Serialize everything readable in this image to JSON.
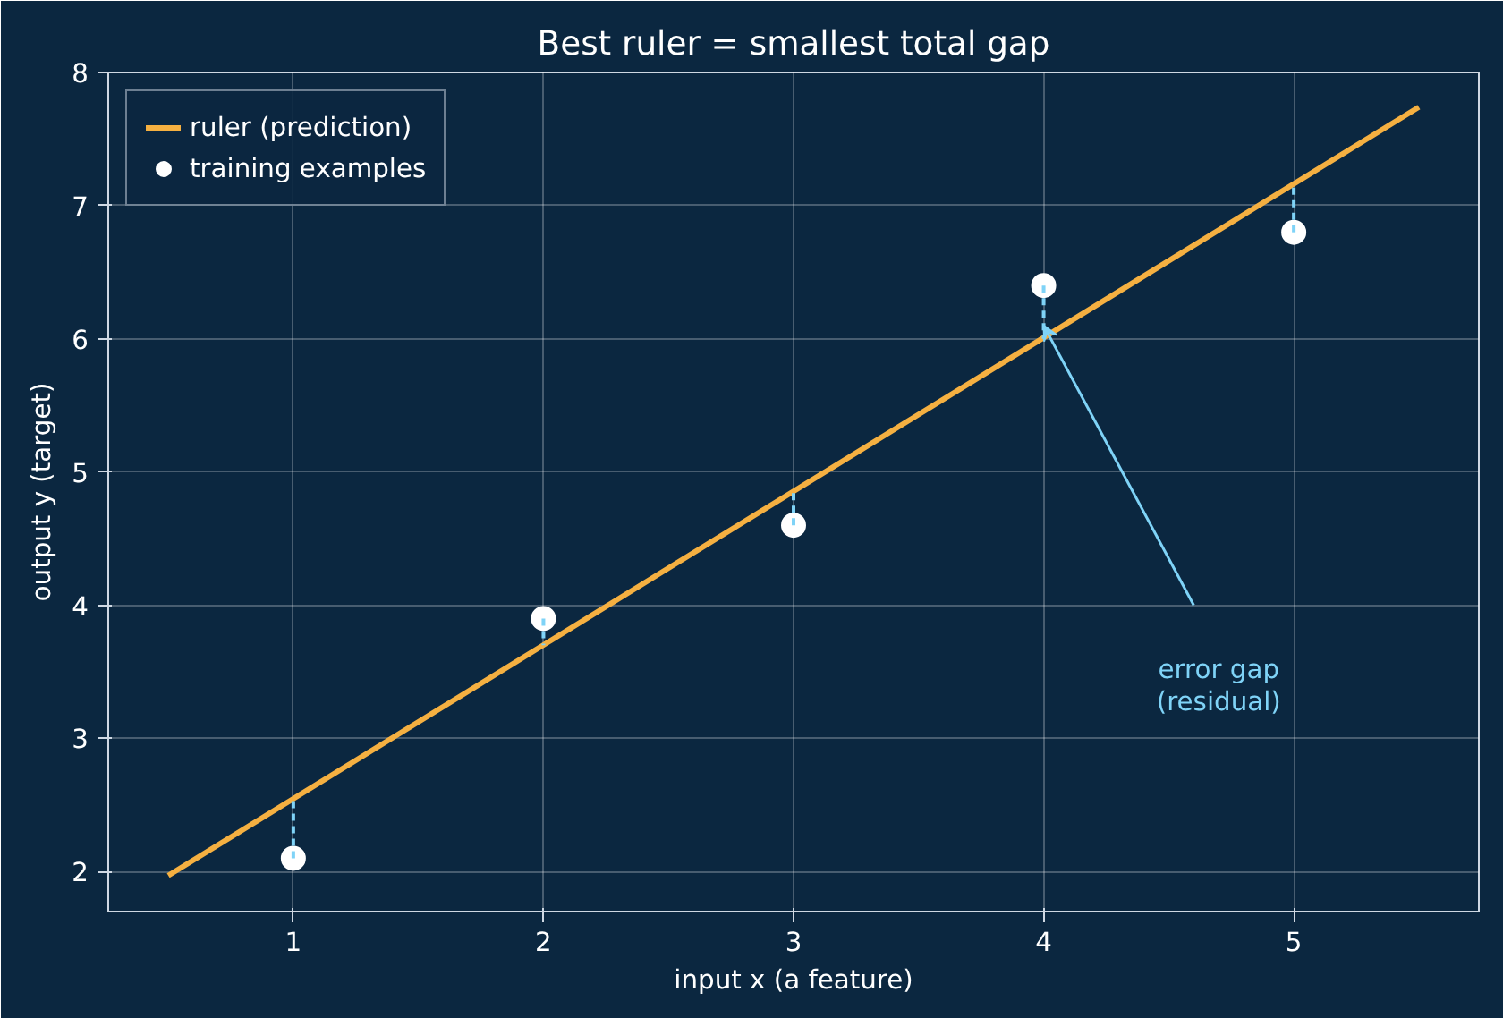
{
  "chart_data": {
    "type": "line",
    "title": "Best ruler = smallest total gap",
    "xlabel": "input x (a feature)",
    "ylabel": "output y (target)",
    "xlim": [
      0.26,
      5.74
    ],
    "ylim": [
      1.7,
      8.0
    ],
    "xticks": [
      1,
      2,
      3,
      4,
      5
    ],
    "yticks": [
      2,
      3,
      4,
      5,
      6,
      7,
      8
    ],
    "grid": true,
    "legend": "top left",
    "series": [
      {
        "name": "ruler (prediction)",
        "color": "#f5b041",
        "x": [
          0.5,
          5.5
        ],
        "values": [
          1.97,
          7.74
        ],
        "marker": "none",
        "line_style": "solid"
      },
      {
        "name": "training examples",
        "type": "scatter",
        "color": "#ffffff",
        "x": [
          1,
          2,
          3,
          4,
          5
        ],
        "values": [
          2.1,
          3.9,
          4.6,
          6.4,
          6.8
        ],
        "marker": "circle"
      },
      {
        "color": "#7fd3f7",
        "x": [
          1,
          1
        ],
        "values": [
          2.1,
          2.55
        ],
        "marker": "none",
        "line_style": "dashed"
      },
      {
        "color": "#7fd3f7",
        "x": [
          2,
          2
        ],
        "values": [
          3.9,
          3.7
        ],
        "marker": "none",
        "line_style": "dashed"
      },
      {
        "color": "#7fd3f7",
        "x": [
          3,
          3
        ],
        "values": [
          4.6,
          4.85
        ],
        "marker": "none",
        "line_style": "dashed"
      },
      {
        "color": "#7fd3f7",
        "x": [
          4,
          4
        ],
        "values": [
          6.4,
          6.0
        ],
        "marker": "none",
        "line_style": "dashed"
      },
      {
        "color": "#7fd3f7",
        "x": [
          5,
          5
        ],
        "values": [
          6.8,
          7.15
        ],
        "marker": "none",
        "line_style": "dashed"
      }
    ],
    "annotations": [
      "error gap\n(residual)"
    ]
  }
}
